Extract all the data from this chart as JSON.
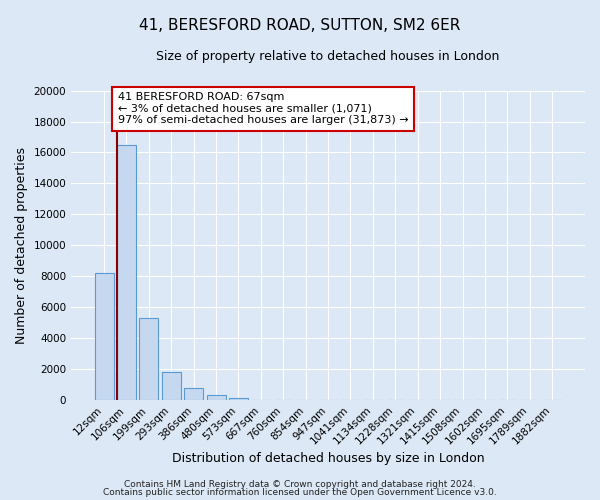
{
  "title": "41, BERESFORD ROAD, SUTTON, SM2 6ER",
  "subtitle": "Size of property relative to detached houses in London",
  "xlabel": "Distribution of detached houses by size in London",
  "ylabel": "Number of detached properties",
  "bar_labels": [
    "12sqm",
    "106sqm",
    "199sqm",
    "293sqm",
    "386sqm",
    "480sqm",
    "573sqm",
    "667sqm",
    "760sqm",
    "854sqm",
    "947sqm",
    "1041sqm",
    "1134sqm",
    "1228sqm",
    "1321sqm",
    "1415sqm",
    "1508sqm",
    "1602sqm",
    "1695sqm",
    "1789sqm",
    "1882sqm"
  ],
  "bar_values": [
    8200,
    16500,
    5300,
    1800,
    800,
    300,
    150,
    0,
    0,
    0,
    0,
    0,
    0,
    0,
    0,
    0,
    0,
    0,
    0,
    0,
    0
  ],
  "bar_color": "#c5d8f0",
  "bar_edge_color": "#5b9bd5",
  "ylim": [
    0,
    20000
  ],
  "yticks": [
    0,
    2000,
    4000,
    6000,
    8000,
    10000,
    12000,
    14000,
    16000,
    18000,
    20000
  ],
  "vline_color": "#8b0000",
  "annotation_title": "41 BERESFORD ROAD: 67sqm",
  "annotation_line1": "← 3% of detached houses are smaller (1,071)",
  "annotation_line2": "97% of semi-detached houses are larger (31,873) →",
  "annotation_box_facecolor": "#ffffff",
  "annotation_box_edgecolor": "#cc0000",
  "footer1": "Contains HM Land Registry data © Crown copyright and database right 2024.",
  "footer2": "Contains public sector information licensed under the Open Government Licence v3.0.",
  "bg_color": "#dce8f5",
  "plot_bg_color": "#dce8f5",
  "title_fontsize": 11,
  "subtitle_fontsize": 9,
  "axis_label_fontsize": 9,
  "tick_fontsize": 7.5,
  "annotation_fontsize": 8,
  "footer_fontsize": 6.5
}
